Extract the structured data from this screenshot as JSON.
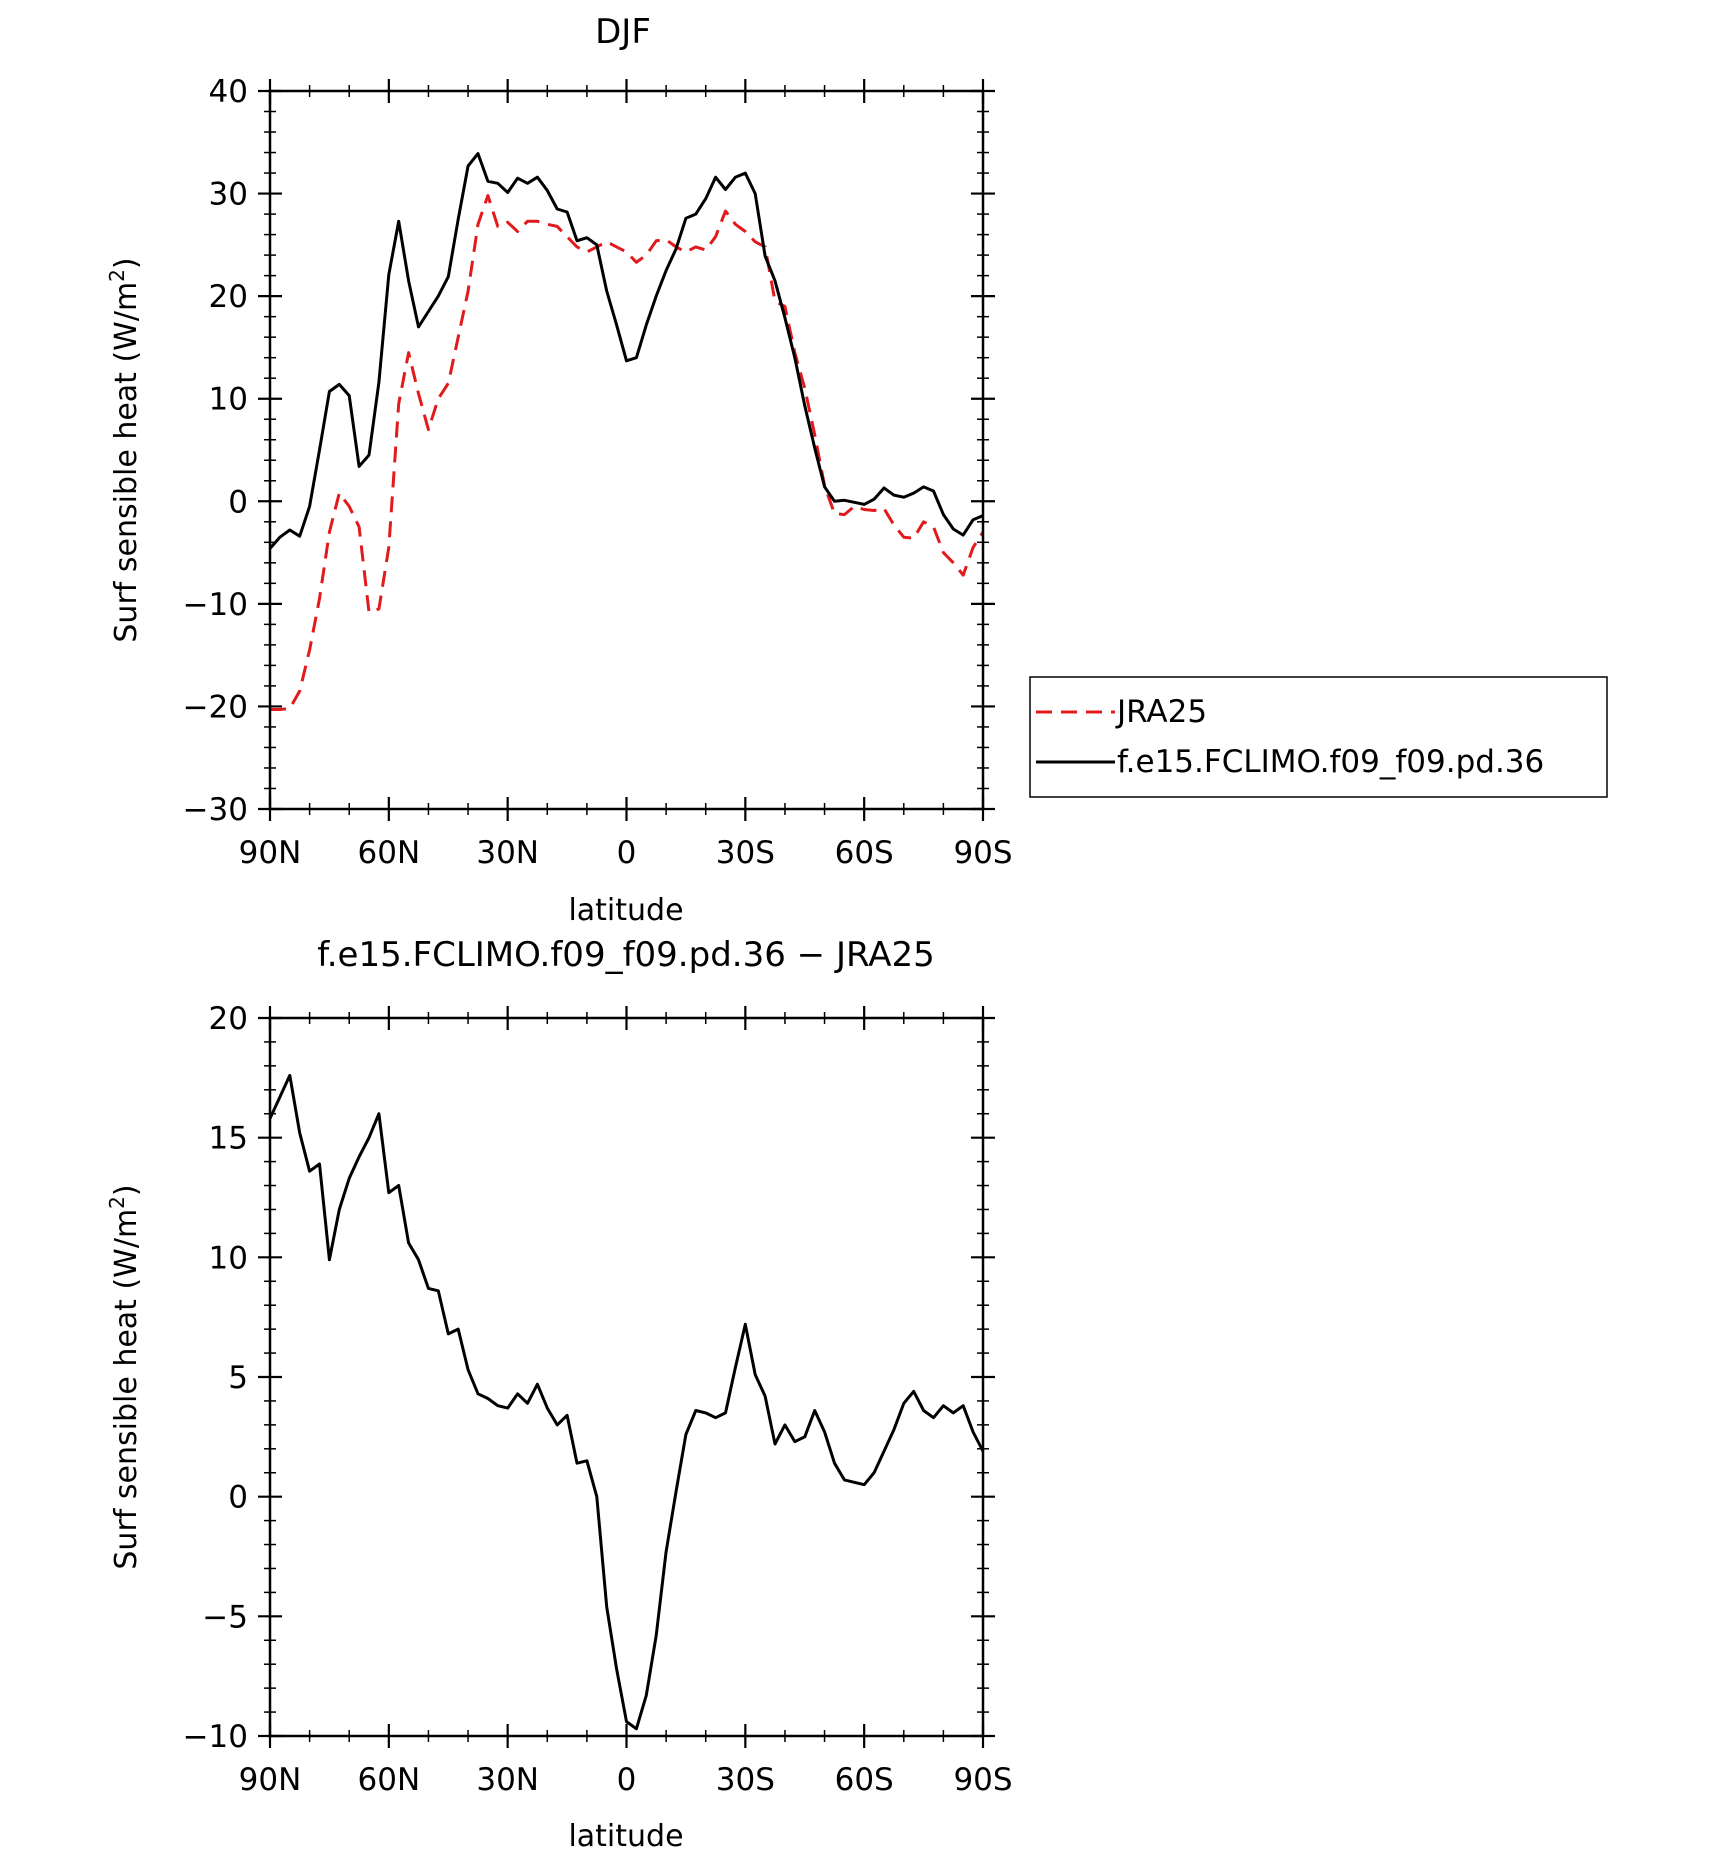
{
  "chart_data": [
    {
      "type": "line",
      "title": "DJF",
      "xlabel": "latitude",
      "ylabel": "Surf sensible heat (W/m2)",
      "xlim": [
        90,
        -90
      ],
      "ylim": [
        -30,
        40
      ],
      "x_ticks": [
        90,
        60,
        30,
        0,
        -30,
        -60,
        -90
      ],
      "x_tick_labels": [
        "90N",
        "60N",
        "30N",
        "0",
        "30S",
        "60S",
        "90S"
      ],
      "y_ticks": [
        -30,
        -20,
        -10,
        0,
        10,
        20,
        30,
        40
      ],
      "y_tick_labels": [
        "−30",
        "−20",
        "−10",
        "0",
        "10",
        "20",
        "30",
        "40"
      ],
      "x": [
        90,
        87.5,
        85,
        82.5,
        80,
        77.5,
        75,
        72.5,
        70,
        67.5,
        65,
        62.5,
        60,
        57.5,
        55,
        52.5,
        50,
        47.5,
        45,
        42.5,
        40,
        37.5,
        35,
        32.5,
        30,
        27.5,
        25,
        22.5,
        20,
        17.5,
        15,
        12.5,
        10,
        7.5,
        5,
        2.5,
        0,
        -2.5,
        -5,
        -7.5,
        -10,
        -12.5,
        -15,
        -17.5,
        -20,
        -22.5,
        -25,
        -27.5,
        -30,
        -32.5,
        -35,
        -37.5,
        -40,
        -42.5,
        -45,
        -47.5,
        -50,
        -52.5,
        -55,
        -57.5,
        -60,
        -62.5,
        -65,
        -67.5,
        -70,
        -72.5,
        -75,
        -77.5,
        -80,
        -82.5,
        -85,
        -87.5,
        -90
      ],
      "series": [
        {
          "name": "JRA25",
          "color": "#e31a1c",
          "dash": true,
          "values": [
            -20.3,
            -20.3,
            -20.2,
            -18.5,
            -14.5,
            -9.5,
            -3.0,
            0.8,
            -0.5,
            -2.5,
            -10.8,
            -10.5,
            -4.5,
            9.5,
            14.5,
            10.5,
            7.0,
            10.0,
            11.5,
            16.0,
            20.5,
            27.0,
            29.8,
            26.8,
            27.2,
            26.3,
            27.3,
            27.3,
            27.0,
            26.8,
            25.8,
            24.8,
            24.3,
            24.8,
            25.3,
            24.8,
            24.3,
            23.3,
            24.0,
            25.4,
            25.5,
            24.8,
            24.3,
            24.8,
            24.5,
            25.8,
            28.3,
            27.0,
            26.3,
            25.3,
            24.8,
            19.5,
            19.0,
            14.5,
            11.0,
            6.5,
            1.5,
            -1.2,
            -1.3,
            -0.5,
            -0.8,
            -0.9,
            -0.7,
            -2.3,
            -3.5,
            -3.6,
            -2.0,
            -2.5,
            -5.0,
            -6.0,
            -7.2,
            -4.5,
            -3.0
          ]
        },
        {
          "name": "f.e15.FCLIMO.f09_f09.pd.36",
          "color": "#000000",
          "dash": false,
          "values": [
            -4.6,
            -3.5,
            -2.8,
            -3.4,
            -0.5,
            5.0,
            10.7,
            11.4,
            10.3,
            3.4,
            4.5,
            11.6,
            22.1,
            27.3,
            21.5,
            17.0,
            18.5,
            20.0,
            21.9,
            27.5,
            32.7,
            33.9,
            31.2,
            31.0,
            30.1,
            31.5,
            31.0,
            31.6,
            30.3,
            28.5,
            28.2,
            25.4,
            25.7,
            25.0,
            20.5,
            17.2,
            13.7,
            14.0,
            17.2,
            20.0,
            22.5,
            24.6,
            27.6,
            28.0,
            29.5,
            31.6,
            30.4,
            31.6,
            32.0,
            30.0,
            23.9,
            21.5,
            17.9,
            14.0,
            9.3,
            5.2,
            1.4,
            0.0,
            0.1,
            -0.1,
            -0.3,
            0.2,
            1.3,
            0.6,
            0.4,
            0.8,
            1.4,
            1.0,
            -1.3,
            -2.7,
            -3.3,
            -1.8,
            -1.4
          ]
        }
      ],
      "legend": {
        "placement": "right",
        "entries": [
          "JRA25",
          "f.e15.FCLIMO.f09_f09.pd.36"
        ]
      }
    },
    {
      "type": "line",
      "title": "f.e15.FCLIMO.f09_f09.pd.36 − JRA25",
      "xlabel": "latitude",
      "ylabel": "Surf sensible heat (W/m2)",
      "xlim": [
        90,
        -90
      ],
      "ylim": [
        -10,
        20
      ],
      "x_ticks": [
        90,
        60,
        30,
        0,
        -30,
        -60,
        -90
      ],
      "x_tick_labels": [
        "90N",
        "60N",
        "30N",
        "0",
        "30S",
        "60S",
        "90S"
      ],
      "y_ticks": [
        -10,
        -5,
        0,
        5,
        10,
        15,
        20
      ],
      "y_tick_labels": [
        "−10",
        "−5",
        "0",
        "5",
        "10",
        "15",
        "20"
      ],
      "x": [
        90,
        87.5,
        85,
        82.5,
        80,
        77.5,
        75,
        72.5,
        70,
        67.5,
        65,
        62.5,
        60,
        57.5,
        55,
        52.5,
        50,
        47.5,
        45,
        42.5,
        40,
        37.5,
        35,
        32.5,
        30,
        27.5,
        25,
        22.5,
        20,
        17.5,
        15,
        12.5,
        10,
        7.5,
        5,
        2.5,
        0,
        -2.5,
        -5,
        -7.5,
        -10,
        -12.5,
        -15,
        -17.5,
        -20,
        -22.5,
        -25,
        -27.5,
        -30,
        -32.5,
        -35,
        -37.5,
        -40,
        -42.5,
        -45,
        -47.5,
        -50,
        -52.5,
        -55,
        -57.5,
        -60,
        -62.5,
        -65,
        -67.5,
        -70,
        -72.5,
        -75,
        -77.5,
        -80,
        -82.5,
        -85,
        -87.5,
        -90
      ],
      "series": [
        {
          "color": "#000000",
          "dash": false,
          "values": [
            15.8,
            16.7,
            17.6,
            15.2,
            13.6,
            13.9,
            9.9,
            12.0,
            13.3,
            14.2,
            15.0,
            16.0,
            12.7,
            13.0,
            10.6,
            9.9,
            8.7,
            8.6,
            6.8,
            7.0,
            5.3,
            4.3,
            4.1,
            3.8,
            3.7,
            4.3,
            3.9,
            4.7,
            3.7,
            3.0,
            3.4,
            1.4,
            1.5,
            0.0,
            -4.6,
            -7.2,
            -9.4,
            -9.7,
            -8.3,
            -5.8,
            -2.3,
            0.2,
            2.6,
            3.6,
            3.5,
            3.3,
            3.5,
            5.4,
            7.2,
            5.1,
            4.2,
            2.2,
            3.0,
            2.3,
            2.5,
            3.6,
            2.7,
            1.4,
            0.7,
            0.6,
            0.5,
            1.0,
            1.9,
            2.8,
            3.9,
            4.4,
            3.6,
            3.3,
            3.8,
            3.5,
            3.8,
            2.7,
            1.9
          ]
        }
      ]
    }
  ]
}
